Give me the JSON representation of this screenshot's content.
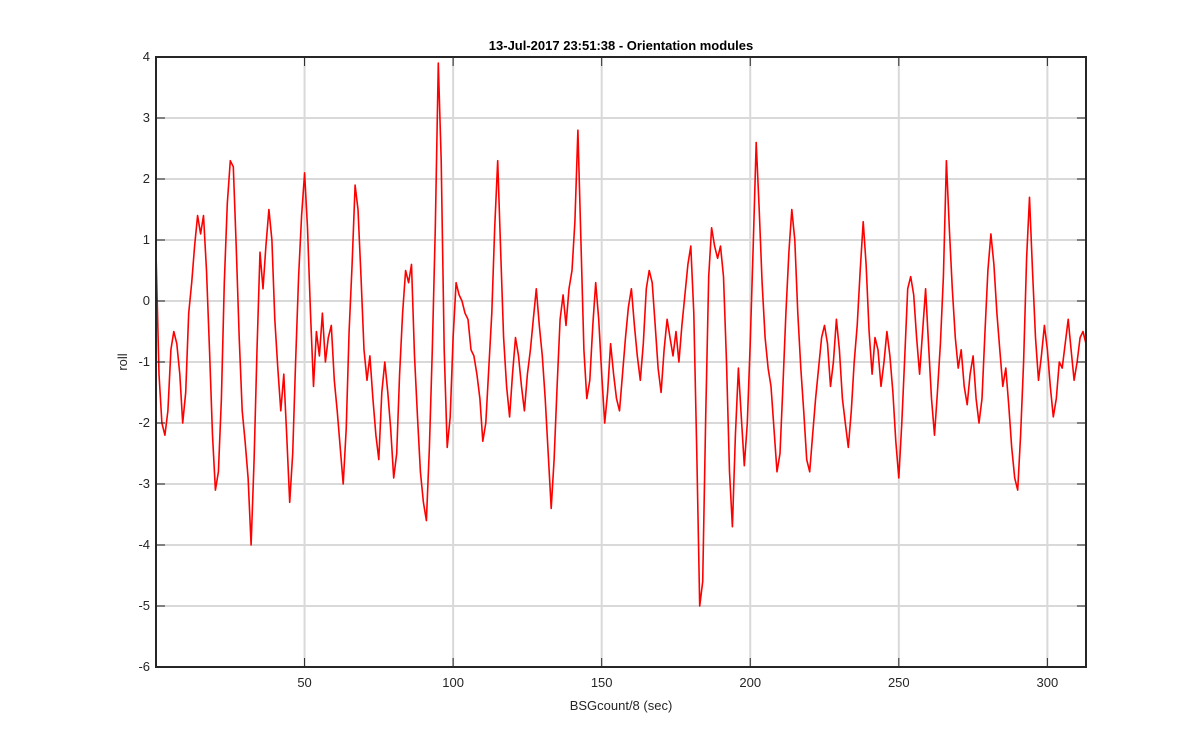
{
  "chart_data": {
    "type": "line",
    "title": "13-Jul-2017 23:51:38 - Orientation modules",
    "xlabel": "BSGcount/8 (sec)",
    "ylabel": "roll",
    "xlim": [
      0,
      313
    ],
    "ylim": [
      -6,
      4
    ],
    "xticks": [
      50,
      100,
      150,
      200,
      250,
      300
    ],
    "yticks": [
      -6,
      -5,
      -4,
      -3,
      -2,
      -1,
      0,
      1,
      2,
      3,
      4
    ],
    "grid": true,
    "line_color": "#ff0000",
    "series": [
      {
        "x": [
          0,
          1,
          2,
          3,
          4,
          5,
          6,
          7,
          8,
          9,
          10,
          11,
          12,
          13,
          14,
          15,
          16,
          17,
          18,
          19,
          20,
          21,
          22,
          23,
          24,
          25,
          26,
          27,
          28,
          29,
          30,
          31,
          32,
          33,
          34,
          35,
          36,
          37,
          38,
          39,
          40,
          41,
          42,
          43,
          44,
          45,
          46,
          47,
          48,
          49,
          50,
          51,
          52,
          53,
          54,
          55,
          56,
          57,
          58,
          59,
          60,
          61,
          62,
          63,
          64,
          65,
          66,
          67,
          68,
          69,
          70,
          71,
          72,
          73,
          74,
          75,
          76,
          77,
          78,
          79,
          80,
          81,
          82,
          83,
          84,
          85,
          86,
          87,
          88,
          89,
          90,
          91,
          92,
          93,
          94,
          95,
          96,
          97,
          98,
          99,
          100,
          101,
          102,
          103,
          104,
          105,
          106,
          107,
          108,
          109,
          110,
          111,
          112,
          113,
          114,
          115,
          116,
          117,
          118,
          119,
          120,
          121,
          122,
          123,
          124,
          125,
          126,
          127,
          128,
          129,
          130,
          131,
          132,
          133,
          134,
          135,
          136,
          137,
          138,
          139,
          140,
          141,
          142,
          143,
          144,
          145,
          146,
          147,
          148,
          149,
          150,
          151,
          152,
          153,
          154,
          155,
          156,
          157,
          158,
          159,
          160,
          161,
          162,
          163,
          164,
          165,
          166,
          167,
          168,
          169,
          170,
          171,
          172,
          173,
          174,
          175,
          176,
          177,
          178,
          179,
          180,
          181,
          182,
          183,
          184,
          185,
          186,
          187,
          188,
          189,
          190,
          191,
          192,
          193,
          194,
          195,
          196,
          197,
          198,
          199,
          200,
          201,
          202,
          203,
          204,
          205,
          206,
          207,
          208,
          209,
          210,
          211,
          212,
          213,
          214,
          215,
          216,
          217,
          218,
          219,
          220,
          221,
          222,
          223,
          224,
          225,
          226,
          227,
          228,
          229,
          230,
          231,
          232,
          233,
          234,
          235,
          236,
          237,
          238,
          239,
          240,
          241,
          242,
          243,
          244,
          245,
          246,
          247,
          248,
          249,
          250,
          251,
          252,
          253,
          254,
          255,
          256,
          257,
          258,
          259,
          260,
          261,
          262,
          263,
          264,
          265,
          266,
          267,
          268,
          269,
          270,
          271,
          272,
          273,
          274,
          275,
          276,
          277,
          278,
          279,
          280,
          281,
          282,
          283,
          284,
          285,
          286,
          287,
          288,
          289,
          290,
          291,
          292,
          293,
          294,
          295,
          296,
          297,
          298,
          299,
          300,
          301,
          302,
          303,
          304,
          305,
          306,
          307,
          308,
          309,
          310,
          311,
          312,
          313
        ],
        "y": [
          0.8,
          -1.2,
          -2.0,
          -2.2,
          -1.8,
          -0.8,
          -0.5,
          -0.7,
          -1.2,
          -2.0,
          -1.5,
          -0.2,
          0.3,
          0.9,
          1.4,
          1.1,
          1.4,
          0.5,
          -0.8,
          -2.2,
          -3.1,
          -2.8,
          -1.6,
          0.3,
          1.6,
          2.3,
          2.2,
          0.9,
          -0.6,
          -1.8,
          -2.3,
          -2.9,
          -4.0,
          -2.6,
          -0.8,
          0.8,
          0.2,
          0.9,
          1.5,
          1.0,
          -0.3,
          -1.1,
          -1.8,
          -1.2,
          -2.2,
          -3.3,
          -2.5,
          -1.0,
          0.4,
          1.4,
          2.1,
          1.2,
          -0.2,
          -1.4,
          -0.5,
          -0.9,
          -0.2,
          -1.0,
          -0.6,
          -0.4,
          -1.3,
          -1.8,
          -2.4,
          -3.0,
          -2.1,
          -0.5,
          0.6,
          1.9,
          1.5,
          0.4,
          -0.8,
          -1.3,
          -0.9,
          -1.6,
          -2.2,
          -2.6,
          -1.5,
          -1.0,
          -1.5,
          -2.1,
          -2.9,
          -2.5,
          -1.2,
          -0.2,
          0.5,
          0.3,
          0.6,
          -0.9,
          -1.9,
          -2.8,
          -3.3,
          -3.6,
          -2.4,
          -0.8,
          1.2,
          3.9,
          2.3,
          -0.8,
          -2.4,
          -1.9,
          -0.6,
          0.3,
          0.1,
          0.0,
          -0.2,
          -0.3,
          -0.8,
          -0.9,
          -1.2,
          -1.6,
          -2.3,
          -2.0,
          -1.1,
          -0.2,
          1.2,
          2.3,
          0.8,
          -0.6,
          -1.4,
          -1.9,
          -1.2,
          -0.6,
          -0.9,
          -1.4,
          -1.8,
          -1.2,
          -0.8,
          -0.3,
          0.2,
          -0.4,
          -0.9,
          -1.6,
          -2.5,
          -3.4,
          -2.6,
          -1.4,
          -0.3,
          0.1,
          -0.4,
          0.2,
          0.5,
          1.3,
          2.8,
          1.0,
          -0.8,
          -1.6,
          -1.3,
          -0.4,
          0.3,
          -0.3,
          -1.2,
          -2.0,
          -1.5,
          -0.7,
          -1.2,
          -1.6,
          -1.8,
          -1.2,
          -0.6,
          -0.1,
          0.2,
          -0.4,
          -0.9,
          -1.3,
          -0.7,
          0.2,
          0.5,
          0.3,
          -0.4,
          -1.1,
          -1.5,
          -0.8,
          -0.3,
          -0.6,
          -0.9,
          -0.5,
          -1.0,
          -0.4,
          0.1,
          0.6,
          0.9,
          -0.2,
          -2.5,
          -5.0,
          -4.6,
          -1.9,
          0.4,
          1.2,
          0.9,
          0.7,
          0.9,
          0.4,
          -1.0,
          -2.8,
          -3.7,
          -2.2,
          -1.1,
          -1.9,
          -2.7,
          -2.0,
          -0.7,
          0.9,
          2.6,
          1.5,
          0.3,
          -0.6,
          -1.1,
          -1.4,
          -2.1,
          -2.8,
          -2.5,
          -1.4,
          -0.2,
          0.8,
          1.5,
          1.0,
          -0.2,
          -1.1,
          -1.8,
          -2.6,
          -2.8,
          -2.2,
          -1.6,
          -1.1,
          -0.6,
          -0.4,
          -0.7,
          -1.4,
          -1.0,
          -0.3,
          -0.8,
          -1.6,
          -2.0,
          -2.4,
          -1.8,
          -1.0,
          -0.4,
          0.5,
          1.3,
          0.6,
          -0.5,
          -1.2,
          -0.6,
          -0.8,
          -1.4,
          -1.0,
          -0.5,
          -0.9,
          -1.5,
          -2.3,
          -2.9,
          -2.0,
          -0.9,
          0.2,
          0.4,
          0.1,
          -0.6,
          -1.2,
          -0.5,
          0.2,
          -0.7,
          -1.6,
          -2.2,
          -1.5,
          -0.7,
          0.4,
          2.3,
          1.2,
          0.2,
          -0.6,
          -1.1,
          -0.8,
          -1.4,
          -1.7,
          -1.2,
          -0.9,
          -1.6,
          -2.0,
          -1.6,
          -0.5,
          0.5,
          1.1,
          0.6,
          -0.2,
          -0.8,
          -1.4,
          -1.1,
          -1.7,
          -2.4,
          -2.9,
          -3.1,
          -2.2,
          -1.0,
          0.7,
          1.7,
          0.5,
          -0.6,
          -1.3,
          -0.9,
          -0.4,
          -0.8,
          -1.4,
          -1.9,
          -1.6,
          -1.0,
          -1.1,
          -0.7,
          -0.3,
          -0.8,
          -1.3,
          -1.0,
          -0.6,
          -0.5,
          -0.7
        ]
      }
    ]
  }
}
